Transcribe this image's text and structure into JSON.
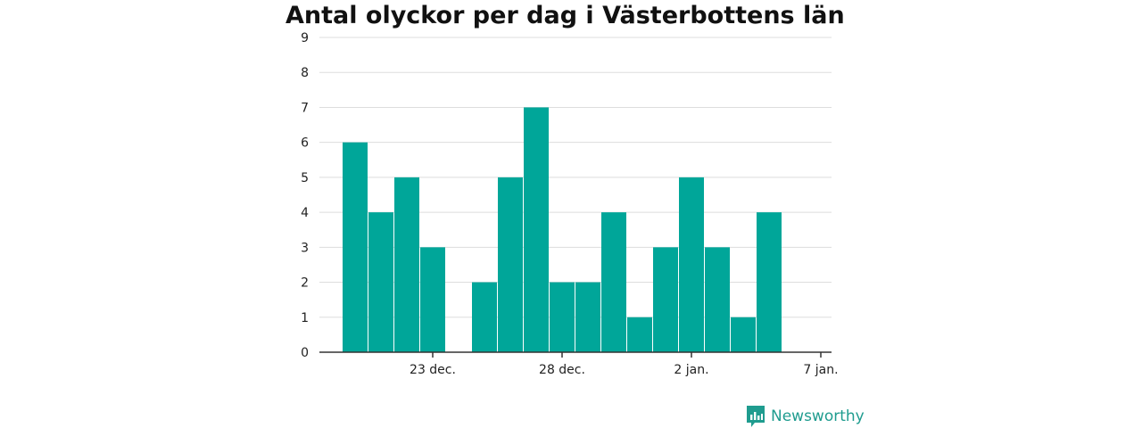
{
  "title": "Antal olyckor per dag i Västerbottens län",
  "brand": {
    "name": "Newsworthy",
    "icon": "newsworthy-logo-icon"
  },
  "colors": {
    "bar": "#00a699",
    "grid": "#dddddd",
    "axis": "#333333",
    "brand": "#1f9c8f"
  },
  "chart_data": {
    "type": "bar",
    "title": "Antal olyckor per dag i Västerbottens län",
    "xlabel": "",
    "ylabel": "",
    "ylim": [
      0,
      9
    ],
    "yticks": [
      0,
      1,
      2,
      3,
      4,
      5,
      6,
      7,
      8,
      9
    ],
    "grid": true,
    "x_range": [
      "2017-12-19",
      "2018-01-07"
    ],
    "xticks": [
      {
        "date": "2017-12-23",
        "label": "23 dec."
      },
      {
        "date": "2017-12-28",
        "label": "28 dec."
      },
      {
        "date": "2018-01-02",
        "label": "2 jan."
      },
      {
        "date": "2018-01-07",
        "label": "7 jan."
      }
    ],
    "categories": [
      "2017-12-20",
      "2017-12-21",
      "2017-12-22",
      "2017-12-23",
      "2017-12-24",
      "2017-12-25",
      "2017-12-26",
      "2017-12-27",
      "2017-12-28",
      "2017-12-29",
      "2017-12-30",
      "2017-12-31",
      "2018-01-01",
      "2018-01-02",
      "2018-01-03",
      "2018-01-04",
      "2018-01-05",
      "2018-01-06"
    ],
    "values": [
      6,
      4,
      5,
      3,
      0,
      2,
      5,
      7,
      2,
      2,
      4,
      1,
      3,
      5,
      3,
      1,
      4,
      0
    ]
  }
}
